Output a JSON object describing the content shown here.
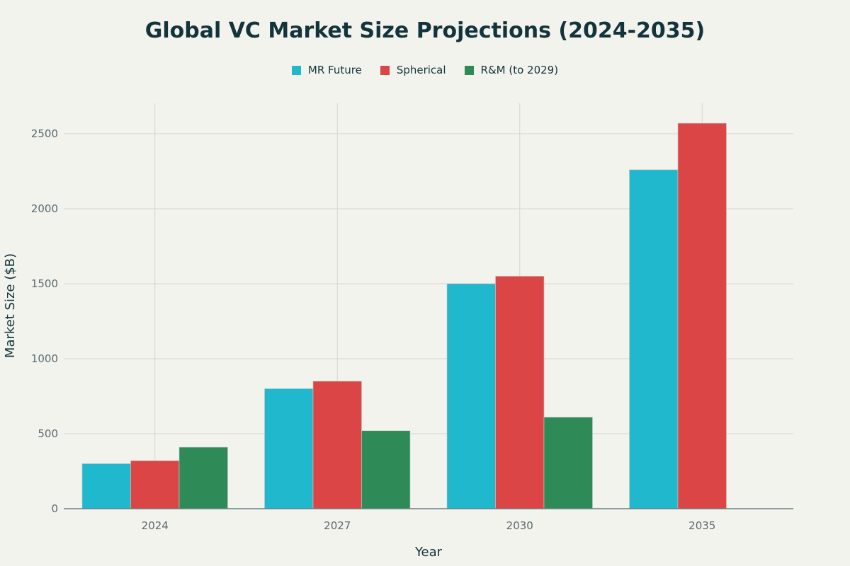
{
  "chart_data": {
    "type": "bar",
    "title": "Global VC Market Size Projections (2024-2035)",
    "xlabel": "Year",
    "ylabel": "Market Size ($B)",
    "categories": [
      "2024",
      "2027",
      "2030",
      "2035"
    ],
    "ylim": [
      0,
      2700
    ],
    "yticks": [
      0,
      500,
      1000,
      1500,
      2000,
      2500
    ],
    "grid": true,
    "legend_position": "top-center",
    "series": [
      {
        "name": "MR Future",
        "color": "#1fb8cd",
        "values": [
          300,
          800,
          1500,
          2260
        ]
      },
      {
        "name": "Spherical",
        "color": "#db4545",
        "values": [
          320,
          850,
          1550,
          2570
        ]
      },
      {
        "name": "R&M (to 2029)",
        "color": "#2e8b57",
        "values": [
          410,
          520,
          610,
          null
        ]
      }
    ]
  }
}
